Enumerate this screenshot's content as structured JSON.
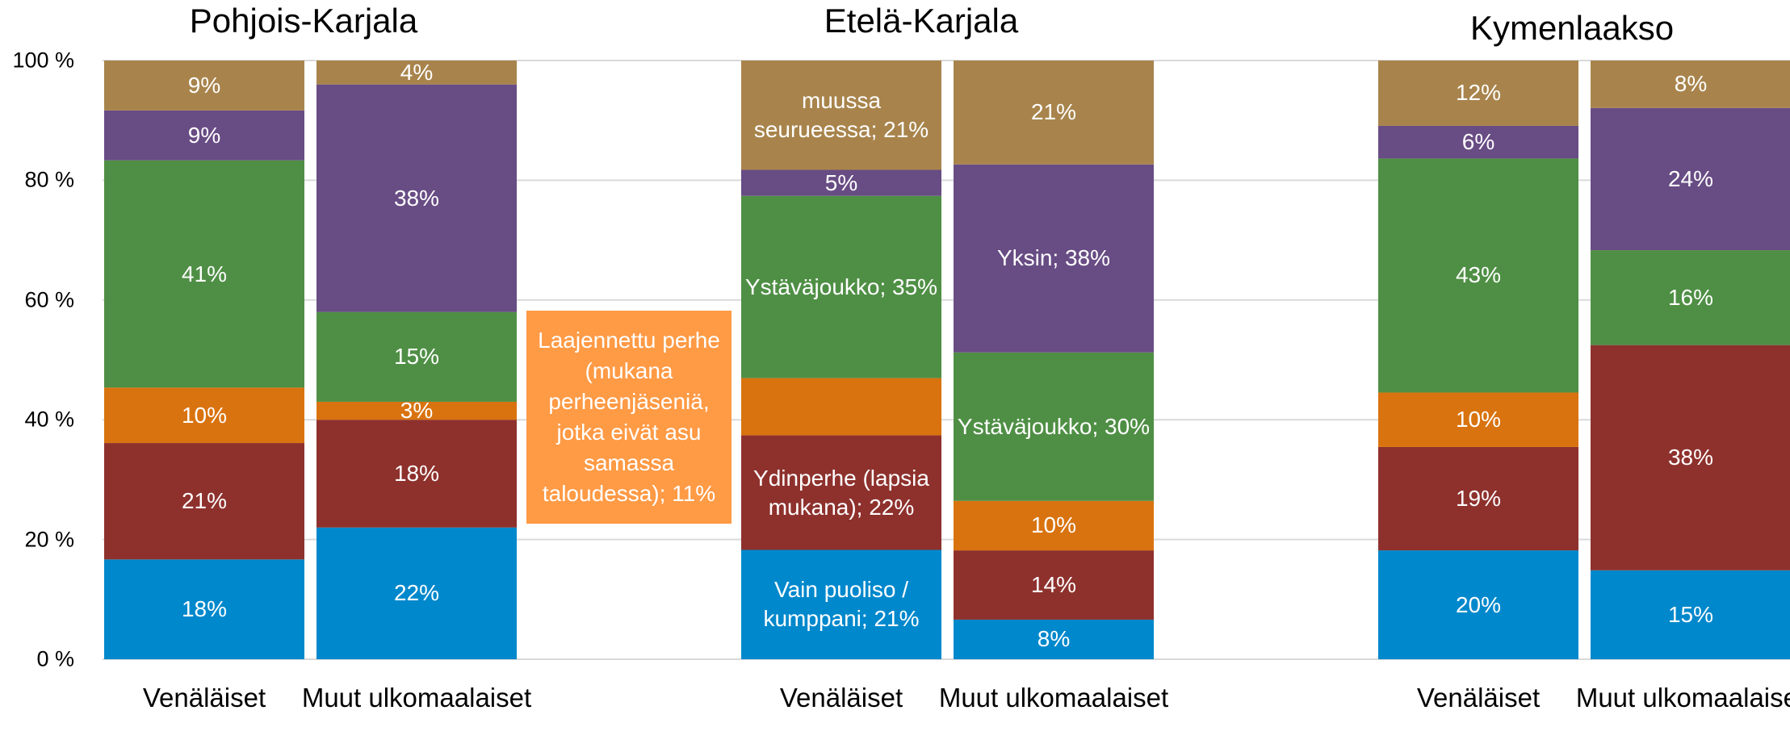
{
  "chart_data": {
    "type": "bar",
    "stacking": "percent",
    "groups": [
      "Pohjois-Karjala",
      "Etelä-Karjala",
      "Kymenlaakso"
    ],
    "categories": [
      "Venäläiset",
      "Muut ulkomaalaiset",
      "Venäläiset",
      "Muut ulkomaalaiset",
      "Venäläiset",
      "Muut ulkomaalaiset"
    ],
    "ylim": [
      0,
      100
    ],
    "yticks": [
      {
        "value": 0,
        "label": "0 %"
      },
      {
        "value": 20,
        "label": "20 %"
      },
      {
        "value": 40,
        "label": "40 %"
      },
      {
        "value": 60,
        "label": "60 %"
      },
      {
        "value": 80,
        "label": "80 %"
      },
      {
        "value": 100,
        "label": "100 %"
      }
    ],
    "grid": true,
    "callout": {
      "series": 2,
      "index": 2
    },
    "series": [
      {
        "color": "#0088cc",
        "values": [
          18,
          22,
          21,
          8,
          20,
          15
        ],
        "value_labels": [
          "18%",
          "22%",
          "Vain puoliso / kumppani; 21%",
          "8%",
          "20%",
          "15%"
        ]
      },
      {
        "color": "#8e312d",
        "values": [
          21,
          18,
          22,
          14,
          19,
          38
        ],
        "value_labels": [
          "21%",
          "18%",
          "Ydinperhe (lapsia mukana); 22%",
          "14%",
          "19%",
          "38%"
        ]
      },
      {
        "color": "#d9730f",
        "values": [
          10,
          3,
          11,
          10,
          10,
          null
        ],
        "value_labels": [
          "10%",
          "3%",
          "Laajennettu perhe (mukana perheenjäseniä, jotka eivät asu samassa taloudessa); 11%",
          "10%",
          "10%",
          null
        ]
      },
      {
        "color": "#4f8f45",
        "values": [
          41,
          15,
          35,
          30,
          43,
          16
        ],
        "value_labels": [
          "41%",
          "15%",
          "Ystäväjoukko; 35%",
          "Ystäväjoukko; 30%",
          "43%",
          "16%"
        ]
      },
      {
        "color": "#684c84",
        "values": [
          9,
          38,
          5,
          38,
          6,
          24
        ],
        "value_labels": [
          "9%",
          "38%",
          "5%",
          "Yksin; 38%",
          "6%",
          "24%"
        ]
      },
      {
        "color": "#a8844c",
        "values": [
          9,
          4,
          21,
          21,
          12,
          8
        ],
        "value_labels": [
          "9%",
          "4%",
          "muussa seurueessa; 21%",
          "21%",
          "12%",
          "8%"
        ]
      }
    ]
  }
}
